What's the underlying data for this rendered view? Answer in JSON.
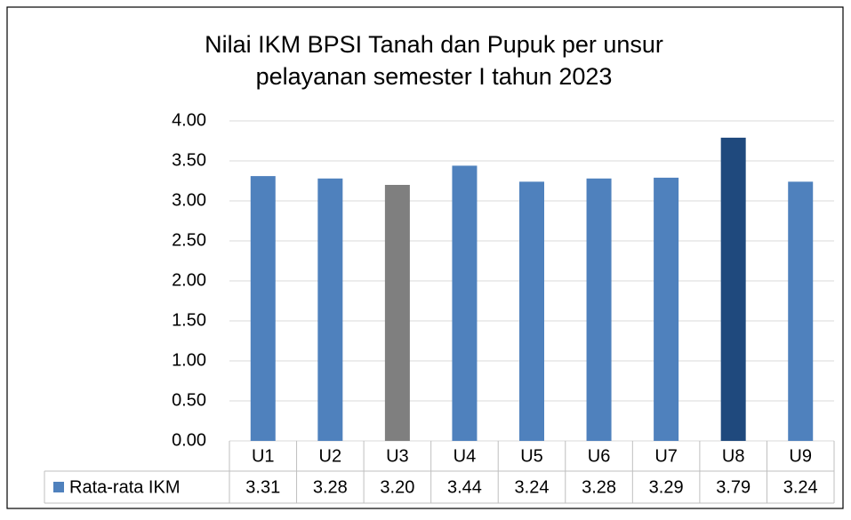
{
  "chart_data": {
    "type": "bar",
    "title": [
      "Nilai IKM BPSI Tanah dan Pupuk per unsur",
      "pelayanan  semester I tahun 2023"
    ],
    "categories": [
      "U1",
      "U2",
      "U3",
      "U4",
      "U5",
      "U6",
      "U7",
      "U8",
      "U9"
    ],
    "series": [
      {
        "name": "Rata-rata IKM",
        "color": "#4f81bd",
        "colors": [
          "#4f81bd",
          "#4f81bd",
          "#7f7f7f",
          "#4f81bd",
          "#4f81bd",
          "#4f81bd",
          "#4f81bd",
          "#1f497d",
          "#4f81bd"
        ],
        "values": [
          3.31,
          3.28,
          3.2,
          3.44,
          3.24,
          3.28,
          3.29,
          3.79,
          3.24
        ],
        "value_labels": [
          "3.31",
          "3.28",
          "3.20",
          "3.44",
          "3.24",
          "3.28",
          "3.29",
          "3.79",
          "3.24"
        ]
      }
    ],
    "ylim": [
      0,
      4
    ],
    "yticks": [
      {
        "value": 0,
        "label": "0.00"
      },
      {
        "value": 0.5,
        "label": "0.50"
      },
      {
        "value": 1,
        "label": "1.00"
      },
      {
        "value": 1.5,
        "label": "1.50"
      },
      {
        "value": 2,
        "label": "2.00"
      },
      {
        "value": 2.5,
        "label": "2.50"
      },
      {
        "value": 3,
        "label": "3.00"
      },
      {
        "value": 3.5,
        "label": "3.50"
      },
      {
        "value": 4,
        "label": "4.00"
      }
    ],
    "grid": true,
    "data_table": true
  }
}
